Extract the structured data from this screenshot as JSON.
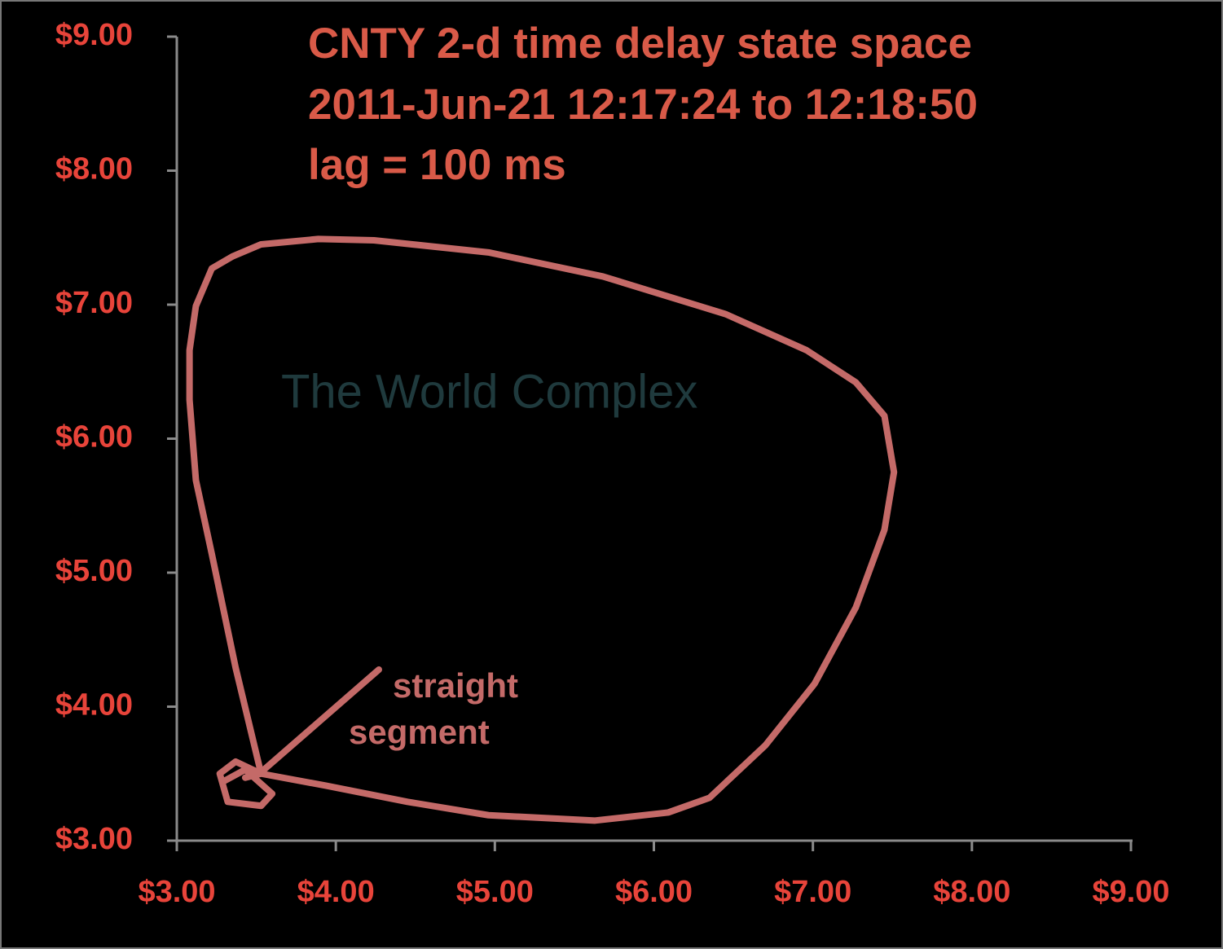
{
  "chart_data": {
    "type": "line",
    "title": [
      "CNTY 2-d time delay state space",
      "2011-Jun-21 12:17:24 to 12:18:50",
      "lag = 100 ms"
    ],
    "watermark": "The World Complex",
    "annotation": [
      "straight",
      "segment"
    ],
    "color": "#c46a68",
    "x": [
      3.43,
      3.53,
      3.94,
      4.45,
      4.96,
      5.63,
      6.09,
      6.35,
      6.7,
      7.01,
      7.27,
      7.45,
      7.51,
      7.45,
      7.27,
      6.96,
      6.45,
      5.68,
      4.96,
      4.24,
      3.89,
      3.53,
      3.35,
      3.22,
      3.12,
      3.08,
      3.08,
      3.12,
      3.22,
      3.37,
      3.53,
      3.37,
      3.27,
      3.32,
      3.53,
      3.6,
      3.43,
      3.29
    ],
    "values": [
      3.47,
      3.5,
      3.41,
      3.29,
      3.19,
      3.15,
      3.21,
      3.32,
      3.71,
      4.17,
      4.74,
      5.32,
      5.75,
      6.17,
      6.42,
      6.66,
      6.93,
      7.21,
      7.39,
      7.48,
      7.49,
      7.45,
      7.36,
      7.27,
      6.99,
      6.66,
      6.29,
      5.69,
      5.14,
      4.29,
      3.5,
      3.59,
      3.5,
      3.29,
      3.26,
      3.35,
      3.53,
      3.44
    ],
    "xlim": [
      3,
      9
    ],
    "ylim": [
      3,
      9
    ],
    "xticks": [
      {
        "value": 3,
        "label": "$3.00"
      },
      {
        "value": 4,
        "label": "$4.00"
      },
      {
        "value": 5,
        "label": "$5.00"
      },
      {
        "value": 6,
        "label": "$6.00"
      },
      {
        "value": 7,
        "label": "$7.00"
      },
      {
        "value": 8,
        "label": "$8.00"
      },
      {
        "value": 9,
        "label": "$9.00"
      }
    ],
    "yticks": [
      {
        "value": 3,
        "label": "$3.00"
      },
      {
        "value": 4,
        "label": "$4.00"
      },
      {
        "value": 5,
        "label": "$5.00"
      },
      {
        "value": 6,
        "label": "$6.00"
      },
      {
        "value": 7,
        "label": "$7.00"
      },
      {
        "value": 8,
        "label": "$8.00"
      },
      {
        "value": 9,
        "label": "$9.00"
      }
    ],
    "grid": false
  }
}
